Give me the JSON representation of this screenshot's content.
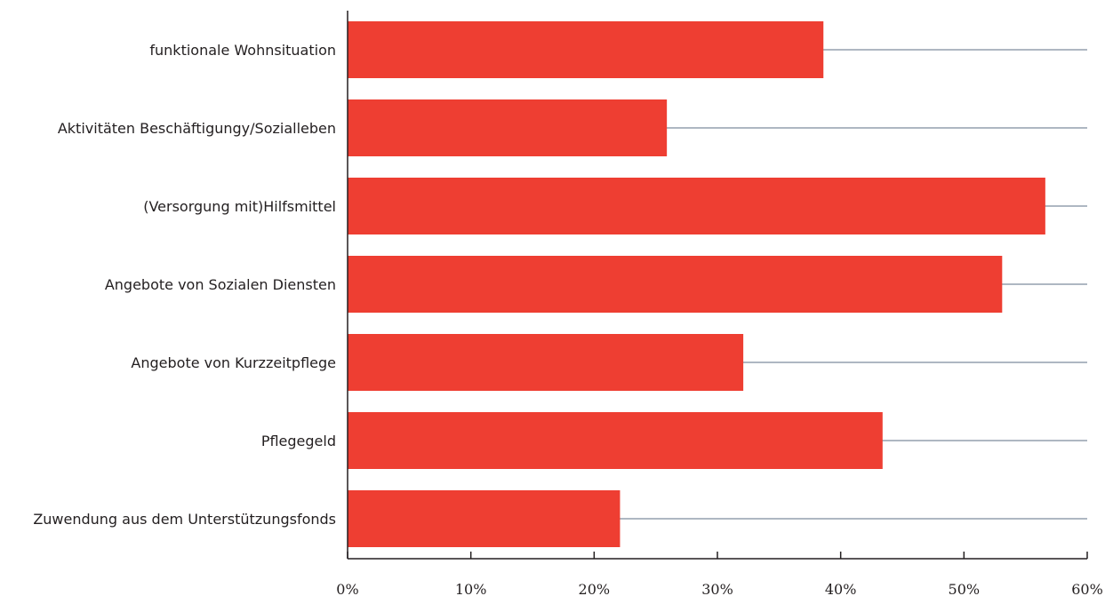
{
  "chart_data": {
    "type": "bar",
    "orientation": "horizontal",
    "categories": [
      "funktionale Wohnsituation",
      "Aktivitäten Beschäftigungy/Sozialleben",
      "(Versorgung mit)Hilfsmittel",
      "Angebote von Sozialen Diensten",
      "Angebote von Kurzzeitpflege",
      "Pflegegeld",
      "Zuwendung aus dem Unterstützungsfonds"
    ],
    "values": [
      38.6,
      25.9,
      56.6,
      53.1,
      32.1,
      43.4,
      22.1
    ],
    "xlim": [
      0,
      60
    ],
    "xticks": [
      0,
      10,
      20,
      30,
      40,
      50,
      60
    ],
    "xtick_labels": [
      "0%",
      "10%",
      "20%",
      "30%",
      "40%",
      "50%",
      "60%"
    ],
    "title": "",
    "xlabel": "",
    "ylabel": "",
    "legend": "none",
    "grid": "horizontal reference line through each bar",
    "colors": {
      "bar": "#ee3e32",
      "reference_line": "#5c6f84",
      "axis": "#231f20",
      "text": "#231f20"
    }
  }
}
